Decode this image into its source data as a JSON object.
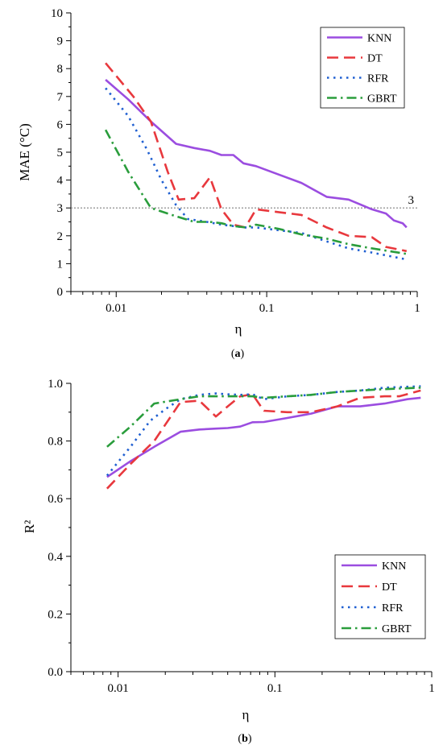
{
  "chart_data": [
    {
      "type": "line",
      "caption_letter": "a",
      "ylabel": "MAE (°C)",
      "xlabel": "η",
      "xscale": "log",
      "xlim": [
        0.005,
        1
      ],
      "ylim": [
        0,
        10
      ],
      "x_tick_labels": [
        {
          "value": 0.01,
          "label": "0.01"
        },
        {
          "value": 0.1,
          "label": "0.1"
        },
        {
          "value": 1,
          "label": "1"
        }
      ],
      "y_ticks": [
        0,
        1,
        2,
        3,
        4,
        5,
        6,
        7,
        8,
        9,
        10
      ],
      "reference_line": {
        "y": 3,
        "label": "3",
        "color": "#808080"
      },
      "legend_position": "top-right",
      "series": [
        {
          "name": "KNN",
          "color": "#9B4DE0",
          "dash": "solid",
          "x": [
            0.0085,
            0.012,
            0.017,
            0.025,
            0.033,
            0.042,
            0.05,
            0.06,
            0.07,
            0.085,
            0.12,
            0.17,
            0.25,
            0.35,
            0.5,
            0.62,
            0.7,
            0.8,
            0.85
          ],
          "y": [
            7.6,
            6.9,
            6.1,
            5.3,
            5.15,
            5.05,
            4.9,
            4.9,
            4.6,
            4.5,
            4.2,
            3.9,
            3.4,
            3.3,
            2.95,
            2.8,
            2.55,
            2.45,
            2.3
          ]
        },
        {
          "name": "DT",
          "color": "#E8383D",
          "dash": "dashed",
          "x": [
            0.0085,
            0.013,
            0.017,
            0.022,
            0.026,
            0.033,
            0.042,
            0.05,
            0.06,
            0.072,
            0.085,
            0.12,
            0.17,
            0.25,
            0.35,
            0.5,
            0.62,
            0.85
          ],
          "y": [
            8.2,
            7.0,
            6.1,
            4.3,
            3.3,
            3.35,
            4.1,
            2.95,
            2.4,
            2.3,
            2.95,
            2.85,
            2.75,
            2.3,
            2.0,
            1.95,
            1.6,
            1.45
          ]
        },
        {
          "name": "RFR",
          "color": "#1F5FD1",
          "dash": "dotted",
          "x": [
            0.0085,
            0.012,
            0.016,
            0.02,
            0.025,
            0.03,
            0.04,
            0.05,
            0.06,
            0.072,
            0.085,
            0.12,
            0.17,
            0.25,
            0.35,
            0.5,
            0.85
          ],
          "y": [
            7.3,
            6.3,
            5.1,
            4.0,
            3.1,
            2.6,
            2.5,
            2.4,
            2.35,
            2.3,
            2.3,
            2.2,
            2.1,
            1.8,
            1.55,
            1.4,
            1.15
          ]
        },
        {
          "name": "GBRT",
          "color": "#2A9D3C",
          "dash": "dashdot",
          "x": [
            0.0085,
            0.012,
            0.017,
            0.025,
            0.033,
            0.042,
            0.05,
            0.06,
            0.072,
            0.085,
            0.12,
            0.17,
            0.25,
            0.35,
            0.5,
            0.85
          ],
          "y": [
            5.8,
            4.3,
            3.0,
            2.7,
            2.5,
            2.5,
            2.45,
            2.35,
            2.3,
            2.4,
            2.25,
            2.05,
            1.9,
            1.7,
            1.55,
            1.35
          ]
        }
      ]
    },
    {
      "type": "line",
      "caption_letter": "b",
      "ylabel": "R²",
      "xlabel": "η",
      "xscale": "log",
      "xlim": [
        0.005,
        1
      ],
      "ylim": [
        0,
        1.0
      ],
      "x_tick_labels": [
        {
          "value": 0.01,
          "label": "0.01"
        },
        {
          "value": 0.1,
          "label": "0.1"
        },
        {
          "value": 1,
          "label": "1"
        }
      ],
      "y_tick_labels": [
        {
          "value": 0.0,
          "label": "0.0"
        },
        {
          "value": 0.2,
          "label": "0.2"
        },
        {
          "value": 0.4,
          "label": "0.4"
        },
        {
          "value": 0.6,
          "label": "0.6"
        },
        {
          "value": 0.8,
          "label": "0.8"
        },
        {
          "value": 1.0,
          "label": "1.0"
        }
      ],
      "legend_position": "bottom-right",
      "series": [
        {
          "name": "KNN",
          "color": "#9B4DE0",
          "dash": "solid",
          "x": [
            0.0085,
            0.012,
            0.017,
            0.025,
            0.033,
            0.042,
            0.05,
            0.06,
            0.072,
            0.085,
            0.12,
            0.17,
            0.25,
            0.35,
            0.5,
            0.7,
            0.85
          ],
          "y": [
            0.675,
            0.73,
            0.78,
            0.832,
            0.84,
            0.843,
            0.845,
            0.85,
            0.865,
            0.866,
            0.88,
            0.895,
            0.92,
            0.92,
            0.93,
            0.945,
            0.95
          ]
        },
        {
          "name": "DT",
          "color": "#E8383D",
          "dash": "dashed",
          "x": [
            0.0085,
            0.012,
            0.017,
            0.025,
            0.033,
            0.042,
            0.05,
            0.06,
            0.072,
            0.085,
            0.12,
            0.17,
            0.25,
            0.35,
            0.5,
            0.62,
            0.85
          ],
          "y": [
            0.635,
            0.72,
            0.8,
            0.935,
            0.94,
            0.885,
            0.92,
            0.955,
            0.962,
            0.905,
            0.9,
            0.9,
            0.92,
            0.95,
            0.955,
            0.955,
            0.975
          ]
        },
        {
          "name": "RFR",
          "color": "#1F5FD1",
          "dash": "dotted",
          "x": [
            0.0085,
            0.012,
            0.016,
            0.02,
            0.025,
            0.033,
            0.042,
            0.05,
            0.06,
            0.072,
            0.085,
            0.12,
            0.17,
            0.25,
            0.35,
            0.5,
            0.85
          ],
          "y": [
            0.68,
            0.78,
            0.87,
            0.91,
            0.945,
            0.96,
            0.965,
            0.962,
            0.96,
            0.962,
            0.945,
            0.955,
            0.96,
            0.97,
            0.975,
            0.985,
            0.99
          ]
        },
        {
          "name": "GBRT",
          "color": "#2A9D3C",
          "dash": "dashdot",
          "x": [
            0.0085,
            0.012,
            0.017,
            0.025,
            0.033,
            0.042,
            0.05,
            0.06,
            0.072,
            0.085,
            0.12,
            0.17,
            0.25,
            0.35,
            0.5,
            0.85
          ],
          "y": [
            0.78,
            0.85,
            0.93,
            0.945,
            0.955,
            0.955,
            0.955,
            0.955,
            0.955,
            0.95,
            0.955,
            0.96,
            0.97,
            0.975,
            0.98,
            0.985
          ]
        }
      ]
    }
  ]
}
